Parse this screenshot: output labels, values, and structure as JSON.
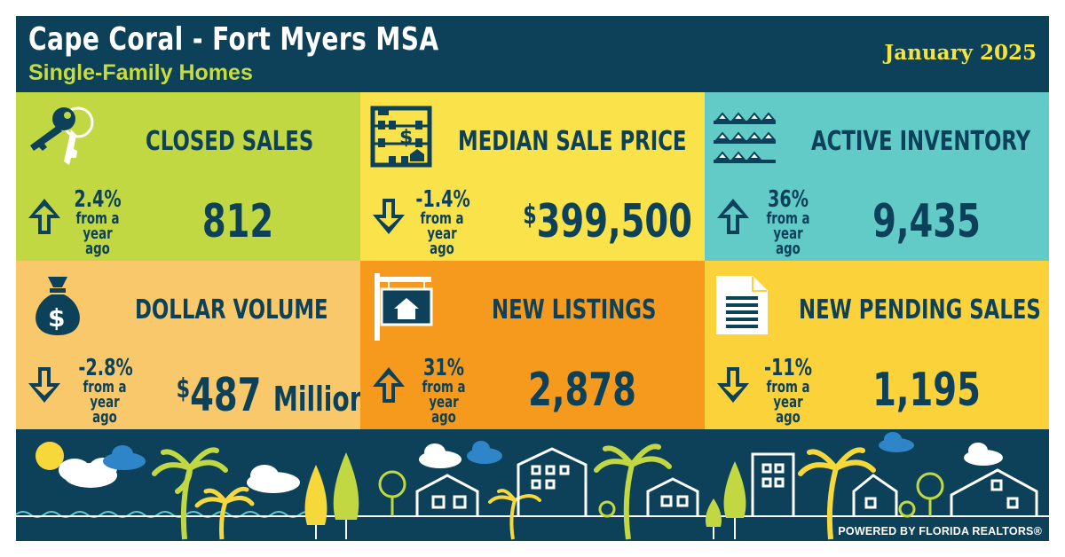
{
  "header": {
    "title": "Cape Coral - Fort Myers MSA",
    "subtitle": "Single-Family Homes",
    "date": "January 2025"
  },
  "metrics": [
    {
      "label": "CLOSED SALES",
      "change": "2.4%",
      "change_text_1": "from a",
      "change_text_2": "year ago",
      "direction": "up",
      "value": "812",
      "color": "#c1d843",
      "icon": "keys-icon"
    },
    {
      "label": "MEDIAN SALE PRICE",
      "change": "-1.4%",
      "change_text_1": "from a",
      "change_text_2": "year ago",
      "direction": "down",
      "value_symbol": "$",
      "value": "399,500",
      "color": "#f9e24a",
      "icon": "abacus-icon"
    },
    {
      "label": "ACTIVE INVENTORY",
      "change": "36%",
      "change_text_1": "from a",
      "change_text_2": "year ago",
      "direction": "up",
      "value": "9,435",
      "color": "#62cbc8",
      "icon": "houses-grid-icon"
    },
    {
      "label": "DOLLAR VOLUME",
      "change": "-2.8%",
      "change_text_1": "from a",
      "change_text_2": "year ago",
      "direction": "down",
      "value_symbol": "$",
      "value": "487",
      "value_unit": "Million",
      "color": "#f8c86a",
      "icon": "money-bag-icon"
    },
    {
      "label": "NEW LISTINGS",
      "change": "31%",
      "change_text_1": "from a",
      "change_text_2": "year ago",
      "direction": "up",
      "value": "2,878",
      "color": "#f59a1d",
      "icon": "for-sale-sign-icon"
    },
    {
      "label": "NEW PENDING SALES",
      "change": "-11%",
      "change_text_1": "from a",
      "change_text_2": "year ago",
      "direction": "down",
      "value": "1,195",
      "color": "#fcd23a",
      "icon": "document-icon"
    }
  ],
  "footer": {
    "powered_by": "POWERED BY FLORIDA REALTORS®"
  },
  "colors": {
    "navy": "#0c4159",
    "lime": "#c1d843",
    "yellow": "#f9e24a",
    "teal": "#62cbc8",
    "peach": "#f8c86a",
    "orange": "#f59a1d",
    "gold": "#fcd23a"
  }
}
